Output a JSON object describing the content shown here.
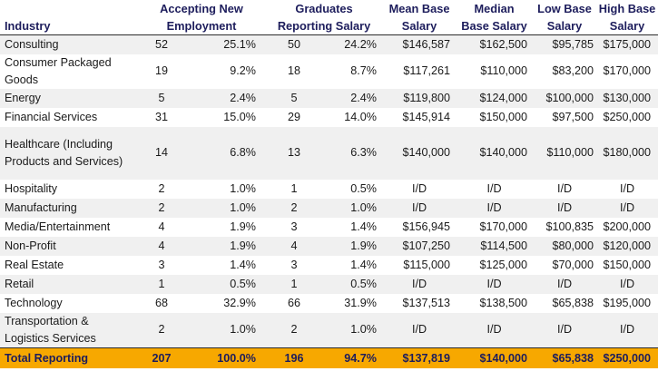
{
  "headers": {
    "industry": [
      "Industry"
    ],
    "accepting": [
      "Accepting New",
      "Employment"
    ],
    "graduates": [
      "Graduates",
      "Reporting Salary"
    ],
    "mean": [
      "Mean Base",
      "Salary"
    ],
    "median": [
      "Median",
      "Base Salary"
    ],
    "low": [
      "Low Base",
      "Salary"
    ],
    "high": [
      "High Base",
      "Salary"
    ]
  },
  "rows": [
    {
      "industry": "Consulting",
      "accept_n": "52",
      "accept_pct": "25.1%",
      "grad_n": "50",
      "grad_pct": "24.2%",
      "mean": "$146,587",
      "median": "$162,500",
      "low": "$95,785",
      "high": "$175,000"
    },
    {
      "industry": "Consumer Packaged Goods",
      "accept_n": "19",
      "accept_pct": "9.2%",
      "grad_n": "18",
      "grad_pct": "8.7%",
      "mean": "$117,261",
      "median": "$110,000",
      "low": "$83,200",
      "high": "$170,000"
    },
    {
      "industry": "Energy",
      "accept_n": "5",
      "accept_pct": "2.4%",
      "grad_n": "5",
      "grad_pct": "2.4%",
      "mean": "$119,800",
      "median": "$124,000",
      "low": "$100,000",
      "high": "$130,000"
    },
    {
      "industry": "Financial Services",
      "accept_n": "31",
      "accept_pct": "15.0%",
      "grad_n": "29",
      "grad_pct": "14.0%",
      "mean": "$145,914",
      "median": "$150,000",
      "low": "$97,500",
      "high": "$250,000"
    },
    {
      "industry": "Healthcare (Including Products and Services)",
      "accept_n": "14",
      "accept_pct": "6.8%",
      "grad_n": "13",
      "grad_pct": "6.3%",
      "mean": "$140,000",
      "median": "$140,000",
      "low": "$110,000",
      "high": "$180,000"
    },
    {
      "industry": "Hospitality",
      "accept_n": "2",
      "accept_pct": "1.0%",
      "grad_n": "1",
      "grad_pct": "0.5%",
      "mean": "I/D",
      "median": "I/D",
      "low": "I/D",
      "high": "I/D"
    },
    {
      "industry": "Manufacturing",
      "accept_n": "2",
      "accept_pct": "1.0%",
      "grad_n": "2",
      "grad_pct": "1.0%",
      "mean": "I/D",
      "median": "I/D",
      "low": "I/D",
      "high": "I/D"
    },
    {
      "industry": "Media/Entertainment",
      "accept_n": "4",
      "accept_pct": "1.9%",
      "grad_n": "3",
      "grad_pct": "1.4%",
      "mean": "$156,945",
      "median": "$170,000",
      "low": "$100,835",
      "high": "$200,000"
    },
    {
      "industry": "Non-Profit",
      "accept_n": "4",
      "accept_pct": "1.9%",
      "grad_n": "4",
      "grad_pct": "1.9%",
      "mean": "$107,250",
      "median": "$114,500",
      "low": "$80,000",
      "high": "$120,000"
    },
    {
      "industry": "Real Estate",
      "accept_n": "3",
      "accept_pct": "1.4%",
      "grad_n": "3",
      "grad_pct": "1.4%",
      "mean": "$115,000",
      "median": "$125,000",
      "low": "$70,000",
      "high": "$150,000"
    },
    {
      "industry": "Retail",
      "accept_n": "1",
      "accept_pct": "0.5%",
      "grad_n": "1",
      "grad_pct": "0.5%",
      "mean": "I/D",
      "median": "I/D",
      "low": "I/D",
      "high": "I/D"
    },
    {
      "industry": "Technology",
      "accept_n": "68",
      "accept_pct": "32.9%",
      "grad_n": "66",
      "grad_pct": "31.9%",
      "mean": "$137,513",
      "median": "$138,500",
      "low": "$65,838",
      "high": "$195,000"
    },
    {
      "industry": "Transportation & Logistics Services",
      "accept_n": "2",
      "accept_pct": "1.0%",
      "grad_n": "2",
      "grad_pct": "1.0%",
      "mean": "I/D",
      "median": "I/D",
      "low": "I/D",
      "high": "I/D"
    }
  ],
  "total": {
    "industry": "Total Reporting",
    "accept_n": "207",
    "accept_pct": "100.0%",
    "grad_n": "196",
    "grad_pct": "94.7%",
    "mean": "$137,819",
    "median": "$140,000",
    "low": "$65,838",
    "high": "$250,000"
  },
  "colors": {
    "header_text": "#1d1d5c",
    "stripe": "#f0f0f0",
    "total_bg": "#f7a800"
  }
}
